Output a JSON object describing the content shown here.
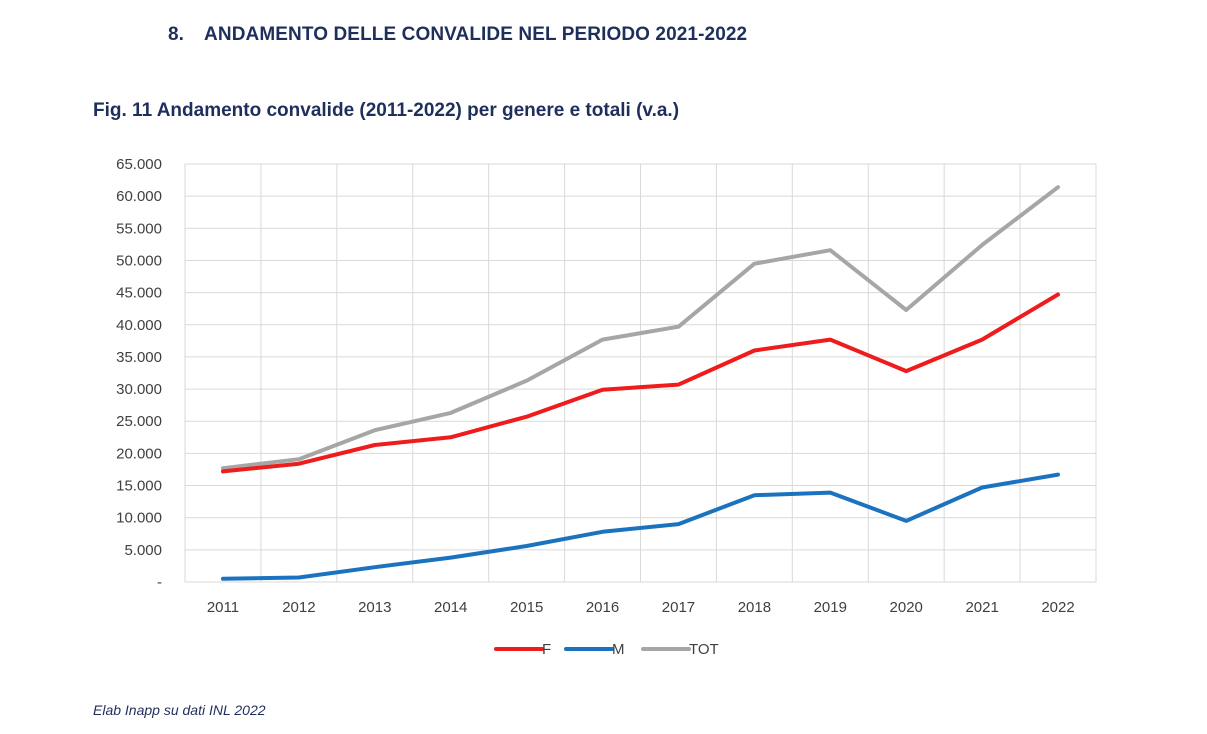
{
  "section": {
    "number": "8.",
    "title": "ANDAMENTO DELLE CONVALIDE NEL PERIODO 2021-2022"
  },
  "figure_title": "Fig. 11 Andamento convalide (2011-2022) per genere e totali (v.a.)",
  "source": "Elab Inapp su dati INL 2022",
  "chart_data": {
    "type": "line",
    "title": "",
    "xlabel": "",
    "ylabel": "",
    "x": [
      "2011",
      "2012",
      "2013",
      "2014",
      "2015",
      "2016",
      "2017",
      "2018",
      "2019",
      "2020",
      "2021",
      "2022"
    ],
    "y_ticks": [
      "-",
      "5.000",
      "10.000",
      "15.000",
      "20.000",
      "25.000",
      "30.000",
      "35.000",
      "40.000",
      "45.000",
      "50.000",
      "55.000",
      "60.000",
      "65.000"
    ],
    "ylim": [
      0,
      65000
    ],
    "grid": true,
    "legend_position": "bottom",
    "series": [
      {
        "name": "F",
        "color": "#ee1c1c",
        "values": [
          17200,
          18400,
          21300,
          22500,
          25700,
          29900,
          30700,
          36000,
          37700,
          32800,
          37700,
          44700
        ]
      },
      {
        "name": "M",
        "color": "#1b73bf",
        "values": [
          500,
          700,
          2300,
          3800,
          5600,
          7800,
          9000,
          13500,
          13900,
          9500,
          14700,
          16700
        ]
      },
      {
        "name": "TOT",
        "color": "#a6a6a6",
        "values": [
          17700,
          19100,
          23600,
          26300,
          31300,
          37700,
          39700,
          49500,
          51600,
          42300,
          52400,
          61400
        ]
      }
    ]
  }
}
